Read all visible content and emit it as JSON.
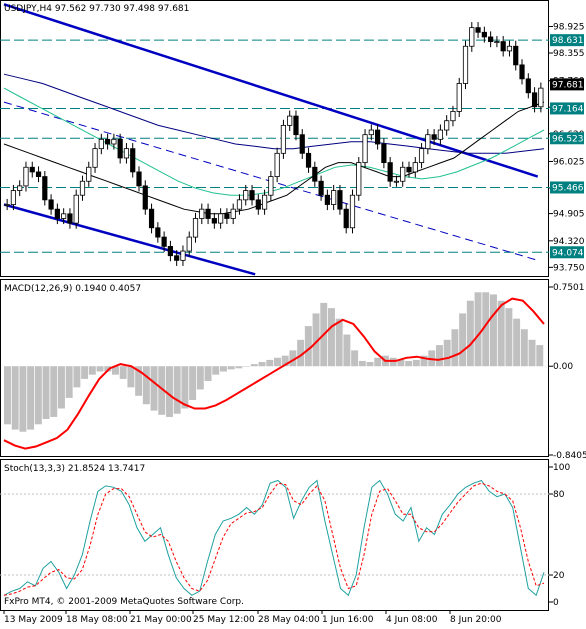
{
  "main_header": "USDJPY,H4  97.562 97.730 97.498 97.681",
  "macd_header": "MACD(12,26,9) 0.1940 0.4057",
  "stoch_header": "Stoch(13,3,3) 21.8524 13.7417",
  "copyright": "FxPro MT4, © 2001-2009 MetaQuotes Software Corp.",
  "colors": {
    "candle": "#000000",
    "channel": "#0000c0",
    "ma_fast": "#000000",
    "ma_mid": "#20c090",
    "ma_slow": "#000080",
    "macd_hist": "#c0c0c0",
    "macd_signal": "#ff0000",
    "stoch_main": "#20a0a0",
    "stoch_signal": "#ff0000",
    "hline": "#008080",
    "price_tag": "#008080",
    "current_tag": "#000000"
  },
  "chart_data": [
    {
      "type": "candlestick",
      "symbol": "USDJPY",
      "timeframe": "H4",
      "ohlc_last": {
        "open": 97.562,
        "high": 97.73,
        "low": 97.498,
        "close": 97.681
      },
      "y_axis_ticks": [
        "98.925",
        "98.355",
        "97.760",
        "97.190",
        "96.620",
        "96.025",
        "95.455",
        "94.905",
        "94.320",
        "93.750"
      ],
      "horizontal_levels": [
        "98.631",
        "97.164",
        "96.523",
        "95.466",
        "94.074"
      ],
      "current_price": "97.681",
      "x_axis_ticks": [
        "13 May 2009",
        "18 May 08:00",
        "21 May 00:00",
        "25 May 12:00",
        "28 May 04:00",
        "1 Jun 16:00",
        "4 Jun 08:00",
        "8 Jun 20:00"
      ],
      "closes": [
        95.1,
        95.4,
        95.5,
        95.9,
        95.8,
        95.7,
        95.2,
        95.0,
        94.8,
        94.9,
        94.7,
        95.3,
        95.6,
        95.9,
        96.3,
        96.5,
        96.4,
        96.5,
        96.1,
        96.3,
        95.8,
        95.5,
        95.0,
        94.6,
        94.4,
        94.2,
        94.0,
        93.9,
        94.1,
        94.4,
        94.8,
        95.0,
        94.8,
        94.7,
        94.9,
        94.8,
        95.0,
        95.2,
        95.4,
        95.2,
        95.0,
        95.3,
        95.7,
        96.2,
        96.8,
        97.0,
        96.6,
        96.2,
        95.9,
        95.6,
        95.3,
        95.1,
        95.4,
        95.0,
        94.6,
        95.3,
        96.0,
        96.6,
        96.7,
        96.4,
        96.0,
        95.6,
        95.6,
        95.9,
        95.8,
        96.0,
        96.3,
        96.6,
        96.5,
        96.7,
        96.9,
        97.1,
        97.7,
        98.5,
        98.9,
        98.8,
        98.7,
        98.6,
        98.6,
        98.4,
        98.5,
        98.1,
        97.8,
        97.5,
        97.2,
        97.6
      ],
      "ma_fast_values": [
        96.4,
        96.3,
        96.2,
        96.1,
        96.0,
        95.9,
        95.8,
        95.7,
        95.6,
        95.5,
        95.4,
        95.3,
        95.2,
        95.1,
        95.0,
        94.95,
        94.9,
        94.9,
        94.95,
        95.0,
        95.1,
        95.2,
        95.3,
        95.5,
        95.7,
        95.9,
        96.0,
        96.0,
        95.9,
        95.8,
        95.7,
        95.7,
        95.8,
        95.9,
        96.0,
        96.1,
        96.3,
        96.5,
        96.7,
        96.9,
        97.1,
        97.2,
        97.3
      ],
      "ma_mid_values": [
        97.6,
        97.4,
        97.2,
        97.0,
        96.8,
        96.6,
        96.4,
        96.2,
        96.0,
        95.8,
        95.6,
        95.45,
        95.35,
        95.3,
        95.3,
        95.35,
        95.45,
        95.6,
        95.75,
        95.9,
        95.95,
        95.9,
        95.8,
        95.7,
        95.65,
        95.7,
        95.8,
        95.95,
        96.1,
        96.3,
        96.5,
        96.7
      ],
      "ma_slow_values": [
        97.9,
        97.8,
        97.7,
        97.55,
        97.4,
        97.25,
        97.1,
        96.95,
        96.8,
        96.7,
        96.6,
        96.5,
        96.4,
        96.35,
        96.3,
        96.3,
        96.35,
        96.4,
        96.45,
        96.45,
        96.4,
        96.35,
        96.3,
        96.25,
        96.2,
        96.2,
        96.2,
        96.25,
        96.3
      ],
      "channel_upper": [
        [
          0,
          99.4
        ],
        [
          85,
          95.7
        ]
      ],
      "channel_mid": [
        [
          0,
          97.3
        ],
        [
          85,
          93.9
        ]
      ],
      "channel_lower": [
        [
          0,
          95.1
        ],
        [
          40,
          93.6
        ]
      ]
    },
    {
      "type": "bar",
      "name": "MACD(12,26,9)",
      "y_axis_ticks": [
        "0.7501",
        "0.00",
        "-0.8405"
      ],
      "ylim": [
        -0.8405,
        0.7501
      ],
      "histogram": [
        -0.55,
        -0.6,
        -0.62,
        -0.6,
        -0.55,
        -0.5,
        -0.48,
        -0.4,
        -0.3,
        -0.2,
        -0.12,
        -0.08,
        -0.05,
        -0.05,
        -0.08,
        -0.12,
        -0.2,
        -0.28,
        -0.36,
        -0.42,
        -0.46,
        -0.48,
        -0.45,
        -0.4,
        -0.32,
        -0.22,
        -0.14,
        -0.08,
        -0.05,
        -0.03,
        -0.02,
        0.0,
        0.02,
        0.04,
        0.06,
        0.08,
        0.1,
        0.15,
        0.25,
        0.38,
        0.5,
        0.6,
        0.55,
        0.45,
        0.3,
        0.15,
        0.05,
        0.04,
        0.08,
        0.1,
        0.08,
        0.06,
        0.05,
        0.06,
        0.1,
        0.15,
        0.2,
        0.25,
        0.35,
        0.5,
        0.62,
        0.7,
        0.7,
        0.68,
        0.62,
        0.55,
        0.45,
        0.35,
        0.25,
        0.2
      ],
      "signal": [
        -0.7,
        -0.75,
        -0.78,
        -0.76,
        -0.72,
        -0.68,
        -0.6,
        -0.45,
        -0.28,
        -0.12,
        -0.02,
        0.02,
        0.0,
        -0.06,
        -0.14,
        -0.22,
        -0.3,
        -0.36,
        -0.4,
        -0.4,
        -0.37,
        -0.32,
        -0.26,
        -0.2,
        -0.14,
        -0.08,
        -0.02,
        0.04,
        0.1,
        0.18,
        0.28,
        0.38,
        0.44,
        0.4,
        0.28,
        0.14,
        0.05,
        0.05,
        0.08,
        0.09,
        0.07,
        0.06,
        0.08,
        0.12,
        0.2,
        0.32,
        0.46,
        0.58,
        0.64,
        0.62,
        0.52,
        0.4
      ]
    },
    {
      "type": "line",
      "name": "Stoch(13,3,3)",
      "y_axis_ticks": [
        "100",
        "80",
        "20",
        "0"
      ],
      "ylim": [
        0,
        100
      ],
      "series": [
        {
          "name": "main",
          "values": [
            5,
            8,
            10,
            15,
            12,
            25,
            30,
            22,
            10,
            20,
            35,
            60,
            82,
            86,
            85,
            82,
            72,
            55,
            45,
            50,
            55,
            35,
            18,
            10,
            5,
            8,
            30,
            50,
            60,
            62,
            65,
            70,
            65,
            72,
            88,
            90,
            85,
            62,
            75,
            85,
            90,
            60,
            35,
            10,
            5,
            20,
            55,
            85,
            90,
            80,
            65,
            60,
            70,
            45,
            55,
            50,
            65,
            72,
            80,
            85,
            88,
            90,
            82,
            78,
            80,
            70,
            40,
            10,
            5,
            22
          ]
        },
        {
          "name": "signal",
          "values": [
            5,
            6,
            8,
            11,
            12,
            17,
            22,
            24,
            18,
            17,
            24,
            42,
            65,
            80,
            84,
            84,
            78,
            65,
            52,
            48,
            50,
            45,
            30,
            18,
            10,
            8,
            16,
            32,
            48,
            58,
            62,
            66,
            67,
            70,
            80,
            88,
            87,
            75,
            72,
            80,
            86,
            75,
            50,
            25,
            10,
            12,
            35,
            65,
            82,
            84,
            75,
            65,
            65,
            55,
            52,
            52,
            58,
            66,
            74,
            80,
            86,
            88,
            86,
            82,
            80,
            75,
            55,
            30,
            12,
            14
          ]
        }
      ]
    }
  ]
}
